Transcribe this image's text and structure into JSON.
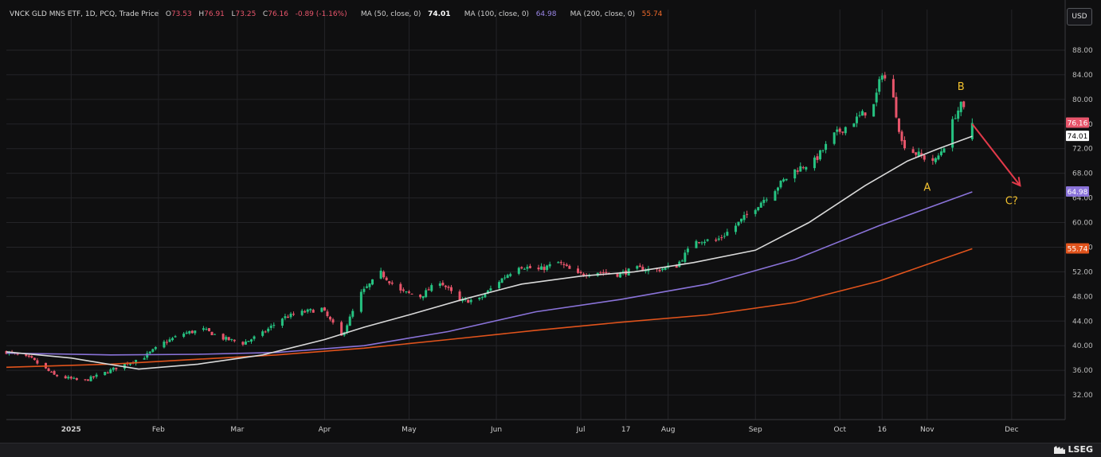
{
  "legend": {
    "instrument": "VNCK GLD MNS ETF, 1D, PCQ, Trade Price",
    "o_label": "O",
    "o_value": "73.53",
    "h_label": "H",
    "h_value": "76.91",
    "l_label": "L",
    "l_value": "73.25",
    "c_label": "C",
    "c_value": "76.16",
    "change": "-0.89 (-1.16%)",
    "ma50_label": "MA (50, close, 0)",
    "ma50_value": "74.01",
    "ma100_label": "MA (100, close, 0)",
    "ma100_value": "64.98",
    "ma200_label": "MA (200, close, 0)",
    "ma200_value": "55.74"
  },
  "currency_button": "USD",
  "brand": "LSEG",
  "colors": {
    "up": "#26c281",
    "down": "#e8556b",
    "ma50": "#d9d9d9",
    "ma100": "#8a73d9",
    "ma200": "#e0531c",
    "annotation_text": "#f2c12e",
    "arrow": "#e23a4a"
  },
  "chart_data": {
    "type": "candlestick",
    "y_axis": {
      "ticks": [
        32,
        36,
        40,
        44,
        48,
        52,
        56,
        60,
        64,
        68,
        72,
        76,
        80,
        84,
        88
      ],
      "tick_labels": [
        "32.00",
        "36.00",
        "40.00",
        "44.00",
        "48.00",
        "52.00",
        "56.00",
        "60.00",
        "64.00",
        "68.00",
        "72.00",
        "76.00",
        "80.00",
        "84.00",
        "88.00"
      ],
      "range": [
        28,
        92
      ]
    },
    "x_axis": {
      "tick_labels": [
        "2025",
        "Feb",
        "Mar",
        "Apr",
        "May",
        "Jun",
        "Jul",
        "17",
        "Aug",
        "Sep",
        "Oct",
        "16",
        "Nov",
        "Dec"
      ],
      "tick_dates": [
        "2025-01-01",
        "2025-02-01",
        "2025-03-01",
        "2025-04-01",
        "2025-05-01",
        "2025-06-01",
        "2025-07-01",
        "2025-07-17",
        "2025-08-01",
        "2025-09-01",
        "2025-10-01",
        "2025-10-16",
        "2025-11-01",
        "2025-12-01"
      ],
      "range": [
        "2024-12-09",
        "2025-12-20"
      ]
    },
    "price_path": [
      [
        "2024-12-09",
        39.0
      ],
      [
        "2024-12-18",
        37.8
      ],
      [
        "2024-12-26",
        35.2
      ],
      [
        "2025-01-05",
        34.2
      ],
      [
        "2025-01-12",
        35.4
      ],
      [
        "2025-01-20",
        37.0
      ],
      [
        "2025-01-27",
        38.2
      ],
      [
        "2025-02-03",
        40.5
      ],
      [
        "2025-02-10",
        42.0
      ],
      [
        "2025-02-17",
        42.6
      ],
      [
        "2025-02-24",
        41.2
      ],
      [
        "2025-03-03",
        40.4
      ],
      [
        "2025-03-10",
        42.0
      ],
      [
        "2025-03-17",
        44.5
      ],
      [
        "2025-03-24",
        45.4
      ],
      [
        "2025-03-31",
        46.0
      ],
      [
        "2025-04-07",
        41.5
      ],
      [
        "2025-04-14",
        48.5
      ],
      [
        "2025-04-21",
        51.8
      ],
      [
        "2025-04-28",
        48.8
      ],
      [
        "2025-05-05",
        48.0
      ],
      [
        "2025-05-12",
        50.5
      ],
      [
        "2025-05-19",
        47.2
      ],
      [
        "2025-05-26",
        47.5
      ],
      [
        "2025-06-02",
        50.5
      ],
      [
        "2025-06-09",
        53.0
      ],
      [
        "2025-06-16",
        52.3
      ],
      [
        "2025-06-23",
        53.5
      ],
      [
        "2025-06-30",
        51.5
      ],
      [
        "2025-07-07",
        52.0
      ],
      [
        "2025-07-14",
        51.6
      ],
      [
        "2025-07-21",
        52.5
      ],
      [
        "2025-07-28",
        52.3
      ],
      [
        "2025-08-04",
        53.0
      ],
      [
        "2025-08-11",
        57.2
      ],
      [
        "2025-08-18",
        57.0
      ],
      [
        "2025-08-25",
        59.5
      ],
      [
        "2025-09-01",
        62.5
      ],
      [
        "2025-09-08",
        65.5
      ],
      [
        "2025-09-15",
        68.5
      ],
      [
        "2025-09-22",
        70.0
      ],
      [
        "2025-09-29",
        74.2
      ],
      [
        "2025-10-06",
        76.5
      ],
      [
        "2025-10-13",
        79.0
      ],
      [
        "2025-10-16",
        84.5
      ],
      [
        "2025-10-20",
        80.0
      ],
      [
        "2025-10-23",
        73.0
      ],
      [
        "2025-10-27",
        71.5
      ],
      [
        "2025-10-31",
        70.5
      ],
      [
        "2025-11-04",
        70.0
      ],
      [
        "2025-11-07",
        72.5
      ],
      [
        "2025-11-11",
        77.5
      ],
      [
        "2025-11-13",
        79.0
      ],
      [
        "2025-11-17",
        76.16
      ]
    ],
    "ma50": [
      [
        "2024-12-09",
        39.0
      ],
      [
        "2025-01-01",
        38.0
      ],
      [
        "2025-01-25",
        36.2
      ],
      [
        "2025-02-15",
        37.0
      ],
      [
        "2025-03-10",
        38.5
      ],
      [
        "2025-04-01",
        41.0
      ],
      [
        "2025-04-15",
        43.0
      ],
      [
        "2025-05-01",
        45.0
      ],
      [
        "2025-05-20",
        47.5
      ],
      [
        "2025-06-10",
        50.0
      ],
      [
        "2025-07-01",
        51.3
      ],
      [
        "2025-07-20",
        52.0
      ],
      [
        "2025-08-10",
        53.5
      ],
      [
        "2025-09-01",
        55.5
      ],
      [
        "2025-09-20",
        60.0
      ],
      [
        "2025-10-10",
        66.0
      ],
      [
        "2025-10-25",
        70.0
      ],
      [
        "2025-11-05",
        72.0
      ],
      [
        "2025-11-17",
        74.01
      ]
    ],
    "ma100": [
      [
        "2024-12-09",
        38.8
      ],
      [
        "2025-01-15",
        38.5
      ],
      [
        "2025-02-15",
        38.6
      ],
      [
        "2025-03-15",
        38.9
      ],
      [
        "2025-04-15",
        40.0
      ],
      [
        "2025-05-15",
        42.3
      ],
      [
        "2025-06-15",
        45.5
      ],
      [
        "2025-07-15",
        47.5
      ],
      [
        "2025-08-15",
        50.0
      ],
      [
        "2025-09-15",
        54.0
      ],
      [
        "2025-10-15",
        59.5
      ],
      [
        "2025-11-17",
        64.98
      ]
    ],
    "ma200": [
      [
        "2024-12-09",
        36.5
      ],
      [
        "2025-01-15",
        37.0
      ],
      [
        "2025-02-15",
        37.8
      ],
      [
        "2025-03-15",
        38.5
      ],
      [
        "2025-04-15",
        39.6
      ],
      [
        "2025-05-15",
        41.0
      ],
      [
        "2025-06-15",
        42.5
      ],
      [
        "2025-07-15",
        43.8
      ],
      [
        "2025-08-15",
        45.0
      ],
      [
        "2025-09-15",
        47.0
      ],
      [
        "2025-10-15",
        50.5
      ],
      [
        "2025-11-17",
        55.74
      ]
    ],
    "price_labels": [
      {
        "text": "76.16",
        "value": 76.16,
        "color": "#e8556b"
      },
      {
        "text": "74.01",
        "value": 74.01,
        "color": "#ffffff"
      },
      {
        "text": "64.98",
        "value": 64.98,
        "color": "#8a73d9"
      },
      {
        "text": "55.74",
        "value": 55.74,
        "color": "#e0531c"
      }
    ],
    "annotations": [
      {
        "text": "B",
        "date": "2025-11-13",
        "value": 81.5
      },
      {
        "text": "A",
        "date": "2025-11-01",
        "value": 65.2
      },
      {
        "text": "C?",
        "date": "2025-12-01",
        "value": 63.0
      }
    ],
    "arrow": {
      "from": [
        "2025-11-17",
        76.0
      ],
      "to": [
        "2025-12-04",
        66.0
      ]
    },
    "grid": true,
    "legend_position": "top-left"
  }
}
